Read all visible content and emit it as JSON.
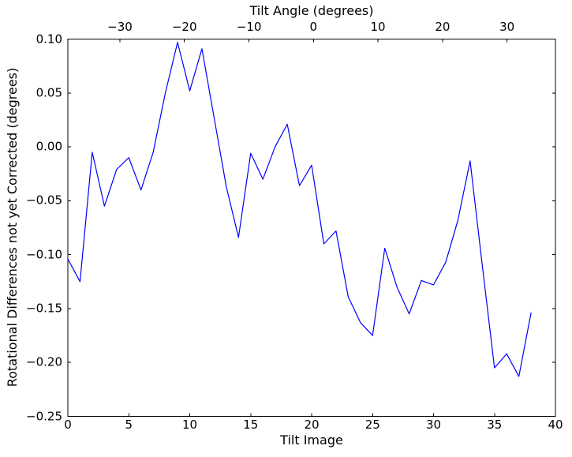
{
  "chart_data": {
    "type": "line",
    "top_axis_title": "Tilt Angle (degrees)",
    "xlabel": "Tilt Image",
    "ylabel": "Rotational Differences not yet Corrected (degrees)",
    "xlim": [
      0,
      40
    ],
    "ylim": [
      -0.25,
      0.1
    ],
    "grid": false,
    "legend": null,
    "line_color": "#0000ff",
    "axis_color": "#000000",
    "background_color": "#ffffff",
    "x": [
      0,
      1,
      2,
      3,
      4,
      5,
      6,
      7,
      8,
      9,
      10,
      11,
      12,
      13,
      14,
      15,
      16,
      17,
      18,
      19,
      20,
      21,
      22,
      23,
      24,
      25,
      26,
      27,
      28,
      29,
      30,
      31,
      32,
      33,
      34,
      35,
      36,
      37,
      38
    ],
    "y": [
      -0.104,
      -0.125,
      -0.005,
      -0.055,
      -0.021,
      -0.01,
      -0.04,
      -0.005,
      0.05,
      0.097,
      0.052,
      0.091,
      0.027,
      -0.037,
      -0.084,
      -0.006,
      -0.03,
      0.0,
      0.021,
      -0.036,
      -0.017,
      -0.09,
      -0.078,
      -0.139,
      -0.163,
      -0.175,
      -0.094,
      -0.13,
      -0.155,
      -0.124,
      -0.128,
      -0.107,
      -0.068,
      -0.013,
      -0.11,
      -0.205,
      -0.192,
      -0.213,
      -0.154
    ],
    "bottom_ticks": {
      "values": [
        0,
        5,
        10,
        15,
        20,
        25,
        30,
        35,
        40
      ],
      "labels": [
        "0",
        "5",
        "10",
        "15",
        "20",
        "25",
        "30",
        "35",
        "40"
      ]
    },
    "left_ticks": {
      "values": [
        0.1,
        0.05,
        0.0,
        -0.05,
        -0.1,
        -0.15,
        -0.2,
        -0.25
      ],
      "labels": [
        "0.10",
        "0.05",
        "0.00",
        "−0.05",
        "−0.10",
        "−0.15",
        "−0.20",
        "−0.25"
      ]
    },
    "top_ticks": {
      "angle_values": [
        -30,
        -20,
        -10,
        0,
        10,
        20,
        30
      ],
      "labels": [
        "−30",
        "−20",
        "−10",
        "0",
        "10",
        "20",
        "30"
      ],
      "positions_in_x_units": [
        4.27,
        9.56,
        14.86,
        20.15,
        25.44,
        30.74,
        36.03
      ]
    }
  }
}
